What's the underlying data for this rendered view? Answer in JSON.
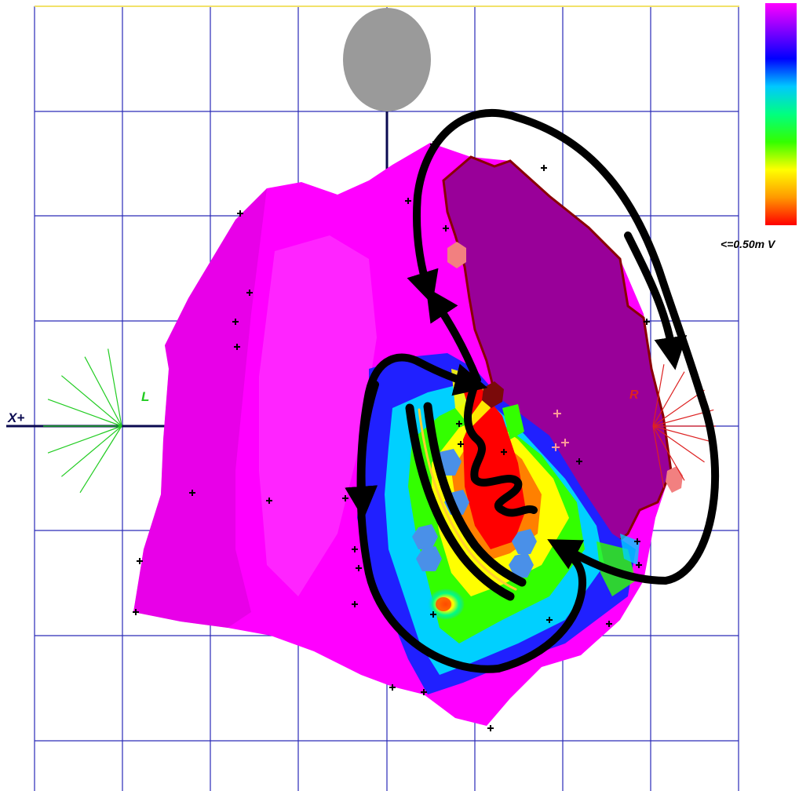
{
  "labels": {
    "axis": "X+",
    "left_marker": "L",
    "right_marker": "R",
    "scale_min": "<=0.50m V"
  },
  "colors": {
    "background": "#ffffff",
    "grid": "#2a2ab8",
    "chamber": "#ff00ff",
    "chamber_shade": "#d600d6",
    "opened_wall": "#990099",
    "wall_edge": "#8a0000",
    "left_marker": "#22cc22",
    "right_marker": "#dd2222",
    "arrows": "#000000",
    "head_sphere": "#9a9a9a",
    "catheter_site": "#4a90e8",
    "ablation_point": "#f28080",
    "scar_point": "#7a0a0a"
  },
  "scale_bar": {
    "colors_top_to_bottom": [
      "#ff00ff",
      "#8000ff",
      "#0000ff",
      "#00c8ff",
      "#00ff80",
      "#33ff00",
      "#ffff00",
      "#ff9900",
      "#ff0000"
    ]
  },
  "icons": {
    "head": "gray-head-sphere",
    "left_orientation": "green-star-burst",
    "right_orientation": "red-star-burst",
    "circuit": "reentry-arrow"
  }
}
